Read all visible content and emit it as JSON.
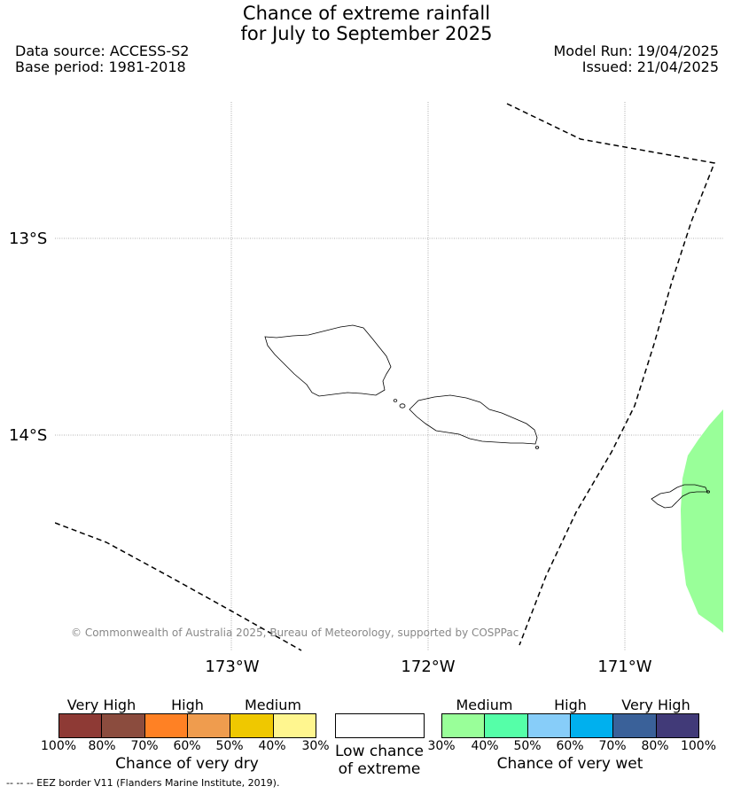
{
  "title": {
    "line1": "Chance of extreme rainfall",
    "line2": "for July to September 2025"
  },
  "meta": {
    "data_source": "Data source: ACCESS-S2",
    "base_period": "Base period: 1981-2018",
    "model_run": "Model Run: 19/04/2025",
    "issued": "Issued: 21/04/2025"
  },
  "map": {
    "lat_labels": [
      "13°S",
      "14°S"
    ],
    "lon_labels": [
      "173°W",
      "172°W",
      "171°W"
    ],
    "copyright": "© Commonwealth of Australia 2025, Bureau of Meteorology, supported by COSPPac",
    "wet_area_level": "Medium (30%–40%)",
    "wet_area_color": "#99ff99"
  },
  "legend": {
    "dry": {
      "category_labels": [
        "Very High",
        "High",
        "Medium"
      ],
      "ticks": [
        "100%",
        "80%",
        "70%",
        "60%",
        "50%",
        "40%",
        "30%"
      ],
      "colors": [
        "#8e3a35",
        "#8b4c3e",
        "#ff8124",
        "#ef9c4e",
        "#efc800",
        "#fff68f"
      ],
      "caption": "Chance of very dry"
    },
    "low": {
      "caption_line1": "Low chance",
      "caption_line2": "of extreme",
      "color": "#ffffff"
    },
    "wet": {
      "category_labels": [
        "Medium",
        "High",
        "Very High"
      ],
      "ticks": [
        "30%",
        "40%",
        "50%",
        "60%",
        "70%",
        "80%",
        "100%"
      ],
      "colors": [
        "#99ff99",
        "#55ffa8",
        "#87cdf9",
        "#00b0ee",
        "#3a6199",
        "#413a78"
      ],
      "caption": "Chance of very wet"
    }
  },
  "footer": {
    "eez": "--  --  -- EEZ border V11 (Flanders Marine Institute, 2019)."
  }
}
